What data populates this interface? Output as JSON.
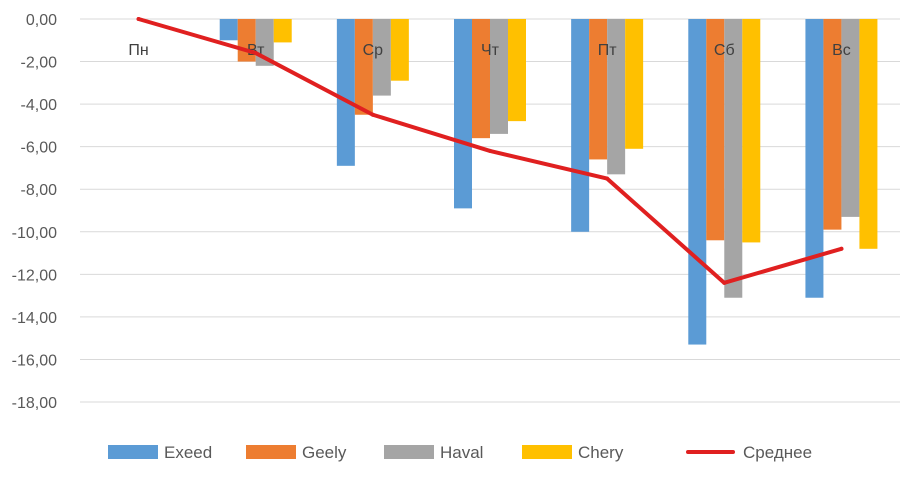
{
  "chart_data": {
    "type": "bar",
    "categories": [
      "Пн",
      "Вт",
      "Ср",
      "Чт",
      "Пт",
      "Сб",
      "Вс"
    ],
    "series": [
      {
        "name": "Exeed",
        "type": "bar",
        "color": "#5B9BD5",
        "values": [
          0,
          -1.0,
          -6.9,
          -8.9,
          -10.0,
          -15.3,
          -13.1
        ]
      },
      {
        "name": "Geely",
        "type": "bar",
        "color": "#ED7D31",
        "values": [
          0,
          -2.0,
          -4.5,
          -5.6,
          -6.6,
          -10.4,
          -9.9
        ]
      },
      {
        "name": "Haval",
        "type": "bar",
        "color": "#A5A5A5",
        "values": [
          0,
          -2.2,
          -3.6,
          -5.4,
          -7.3,
          -13.1,
          -9.3
        ]
      },
      {
        "name": "Chery",
        "type": "bar",
        "color": "#FFC000",
        "values": [
          0,
          -1.1,
          -2.9,
          -4.8,
          -6.1,
          -10.5,
          -10.8
        ]
      },
      {
        "name": "Среднее",
        "type": "line",
        "color": "#E02020",
        "values": [
          0,
          -1.6,
          -4.5,
          -6.2,
          -7.5,
          -12.4,
          -10.8
        ]
      }
    ],
    "ylim": [
      -18,
      0
    ],
    "yticks": [
      0,
      -2,
      -4,
      -6,
      -8,
      -10,
      -12,
      -14,
      -16,
      -18
    ],
    "ytick_labels": [
      "0,00",
      "-2,00",
      "-4,00",
      "-6,00",
      "-8,00",
      "-10,00",
      "-12,00",
      "-14,00",
      "-16,00",
      "-18,00"
    ],
    "grid": true,
    "legend_position": "bottom",
    "title": "",
    "xlabel": "",
    "ylabel": ""
  }
}
